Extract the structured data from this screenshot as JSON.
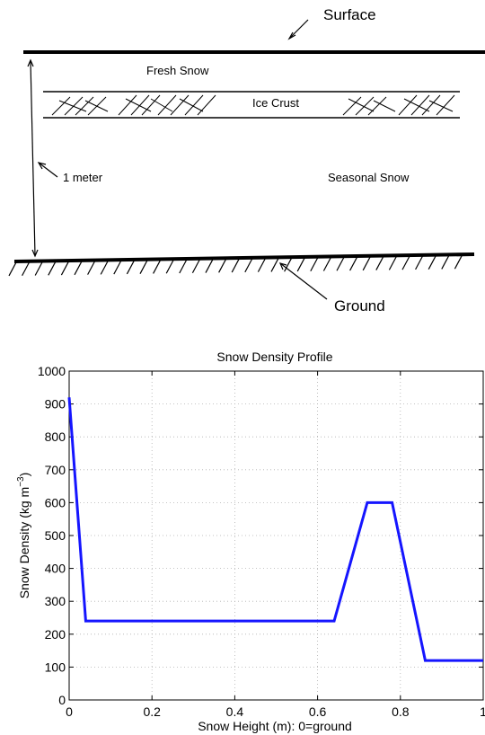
{
  "diagram": {
    "surface_label": "Surface",
    "fresh_snow_label": "Fresh Snow",
    "ice_crust_label": "Ice Crust",
    "one_meter_label": "1 meter",
    "seasonal_snow_label": "Seasonal Snow",
    "ground_label": "Ground"
  },
  "chart_data": {
    "type": "line",
    "title": "Snow Density Profile",
    "xlabel": "Snow Height (m): 0=ground",
    "ylabel_main": "Snow Density (kg m",
    "ylabel_sup": "−3",
    "ylabel_close": ")",
    "xlim": [
      0,
      1
    ],
    "ylim": [
      0,
      1000
    ],
    "x_ticks": [
      0,
      0.2,
      0.4,
      0.6,
      0.8,
      1
    ],
    "x_tick_labels": [
      "0",
      "0.2",
      "0.4",
      "0.6",
      "0.8",
      "1"
    ],
    "y_ticks": [
      0,
      100,
      200,
      300,
      400,
      500,
      600,
      700,
      800,
      900,
      1000
    ],
    "y_tick_labels": [
      "0",
      "100",
      "200",
      "300",
      "400",
      "500",
      "600",
      "700",
      "800",
      "900",
      "1000"
    ],
    "grid": true,
    "line_color": "#1515ff",
    "series": [
      {
        "x": [
          0,
          0.04,
          0.64,
          0.72,
          0.78,
          0.86,
          1.0
        ],
        "y": [
          920,
          240,
          240,
          600,
          600,
          120,
          120
        ]
      }
    ]
  }
}
